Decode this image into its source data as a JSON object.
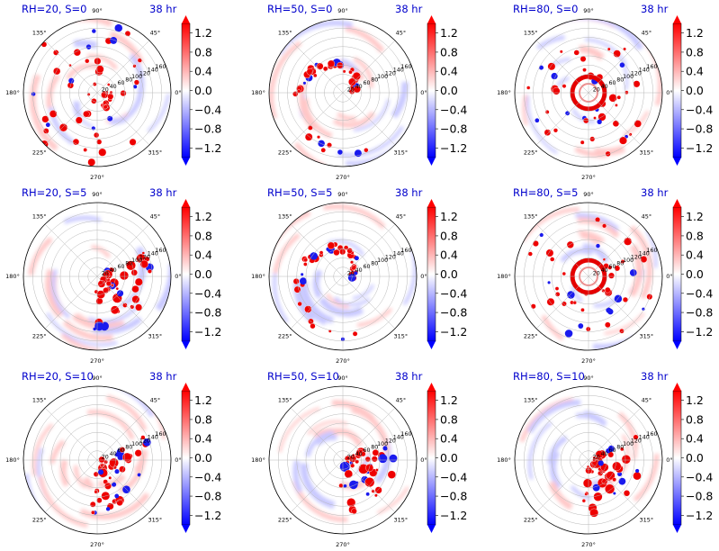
{
  "chart_data": [
    {
      "type": "heatmap",
      "projection": "polar",
      "title": "RH=20, S=0",
      "time_label": "38 hr",
      "angle_ticks": [
        "0°",
        "45°",
        "90°",
        "135°",
        "180°",
        "225°",
        "270°",
        "315°"
      ],
      "radial_ticks": [
        "20",
        "40",
        "60",
        "80",
        "100",
        "120",
        "140",
        "160"
      ],
      "colorbar": {
        "ticks": [
          "1.2",
          "0.8",
          "0.4",
          "0.0",
          "−0.4",
          "−0.8",
          "−1.2"
        ],
        "range": [
          -1.4,
          1.4
        ],
        "cmap": "bwr",
        "extend": "both"
      },
      "grid": true,
      "style": "scattered"
    },
    {
      "type": "heatmap",
      "projection": "polar",
      "title": "RH=50, S=0",
      "time_label": "38 hr",
      "angle_ticks": [
        "0°",
        "45°",
        "90°",
        "135°",
        "180°",
        "225°",
        "270°",
        "315°"
      ],
      "radial_ticks": [
        "20",
        "40",
        "60",
        "80",
        "100",
        "120",
        "140",
        "160"
      ],
      "colorbar": {
        "ticks": [
          "1.2",
          "0.8",
          "0.4",
          "0.0",
          "−0.4",
          "−0.8",
          "−1.2"
        ],
        "range": [
          -1.4,
          1.4
        ],
        "cmap": "bwr",
        "extend": "both"
      },
      "grid": true,
      "style": "spiral"
    },
    {
      "type": "heatmap",
      "projection": "polar",
      "title": "RH=80, S=0",
      "time_label": "38 hr",
      "angle_ticks": [
        "0°",
        "45°",
        "90°",
        "135°",
        "180°",
        "225°",
        "270°",
        "315°"
      ],
      "radial_ticks": [
        "20",
        "40",
        "60",
        "80",
        "100",
        "120",
        "140",
        "160"
      ],
      "colorbar": {
        "ticks": [
          "1.2",
          "0.8",
          "0.4",
          "0.0",
          "−0.4",
          "−0.8",
          "−1.2"
        ],
        "range": [
          -1.4,
          1.4
        ],
        "cmap": "bwr",
        "extend": "both"
      },
      "grid": true,
      "style": "ring"
    },
    {
      "type": "heatmap",
      "projection": "polar",
      "title": "RH=20, S=5",
      "time_label": "38 hr",
      "angle_ticks": [
        "0°",
        "45°",
        "90°",
        "135°",
        "180°",
        "225°",
        "270°",
        "315°"
      ],
      "radial_ticks": [
        "20",
        "40",
        "60",
        "80",
        "100",
        "120",
        "140",
        "160"
      ],
      "colorbar": {
        "ticks": [
          "1.2",
          "0.8",
          "0.4",
          "0.0",
          "−0.4",
          "−0.8",
          "−1.2"
        ],
        "range": [
          -1.4,
          1.4
        ],
        "cmap": "bwr",
        "extend": "both"
      },
      "grid": true,
      "style": "sheared"
    },
    {
      "type": "heatmap",
      "projection": "polar",
      "title": "RH=50, S=5",
      "time_label": "38 hr",
      "angle_ticks": [
        "0°",
        "45°",
        "90°",
        "135°",
        "180°",
        "225°",
        "270°",
        "315°"
      ],
      "radial_ticks": [
        "20",
        "40",
        "60",
        "80",
        "100",
        "120",
        "140",
        "160"
      ],
      "colorbar": {
        "ticks": [
          "1.2",
          "0.8",
          "0.4",
          "0.0",
          "−0.4",
          "−0.8",
          "−1.2"
        ],
        "range": [
          -1.4,
          1.4
        ],
        "cmap": "bwr",
        "extend": "both"
      },
      "grid": true,
      "style": "spiral"
    },
    {
      "type": "heatmap",
      "projection": "polar",
      "title": "RH=80, S=5",
      "time_label": "38 hr",
      "angle_ticks": [
        "0°",
        "45°",
        "90°",
        "135°",
        "180°",
        "225°",
        "270°",
        "315°"
      ],
      "radial_ticks": [
        "20",
        "40",
        "60",
        "80",
        "100",
        "120",
        "140",
        "160"
      ],
      "colorbar": {
        "ticks": [
          "1.2",
          "0.8",
          "0.4",
          "0.0",
          "−0.4",
          "−0.8",
          "−1.2"
        ],
        "range": [
          -1.4,
          1.4
        ],
        "cmap": "bwr",
        "extend": "both"
      },
      "grid": true,
      "style": "ring"
    },
    {
      "type": "heatmap",
      "projection": "polar",
      "title": "RH=20, S=10",
      "time_label": "38 hr",
      "angle_ticks": [
        "0°",
        "45°",
        "90°",
        "135°",
        "180°",
        "225°",
        "270°",
        "315°"
      ],
      "radial_ticks": [
        "20",
        "40",
        "60",
        "80",
        "100",
        "120",
        "140",
        "160"
      ],
      "colorbar": {
        "ticks": [
          "1.2",
          "0.8",
          "0.4",
          "0.0",
          "−0.4",
          "−0.8",
          "−1.2"
        ],
        "range": [
          -1.4,
          1.4
        ],
        "cmap": "bwr",
        "extend": "both"
      },
      "grid": true,
      "style": "sheared"
    },
    {
      "type": "heatmap",
      "projection": "polar",
      "title": "RH=50, S=10",
      "time_label": "38 hr",
      "angle_ticks": [
        "0°",
        "45°",
        "90°",
        "135°",
        "180°",
        "225°",
        "270°",
        "315°"
      ],
      "radial_ticks": [
        "20",
        "40",
        "60",
        "80",
        "100",
        "120",
        "140",
        "160"
      ],
      "colorbar": {
        "ticks": [
          "1.2",
          "0.8",
          "0.4",
          "0.0",
          "−0.4",
          "−0.8",
          "−1.2"
        ],
        "range": [
          -1.4,
          1.4
        ],
        "cmap": "bwr",
        "extend": "both"
      },
      "grid": true,
      "style": "sheared"
    },
    {
      "type": "heatmap",
      "projection": "polar",
      "title": "RH=80, S=10",
      "time_label": "38 hr",
      "angle_ticks": [
        "0°",
        "45°",
        "90°",
        "135°",
        "180°",
        "225°",
        "270°",
        "315°"
      ],
      "radial_ticks": [
        "20",
        "40",
        "60",
        "80",
        "100",
        "120",
        "140",
        "160"
      ],
      "colorbar": {
        "ticks": [
          "1.2",
          "0.8",
          "0.4",
          "0.0",
          "−0.4",
          "−0.8",
          "−1.2"
        ],
        "range": [
          -1.4,
          1.4
        ],
        "cmap": "bwr",
        "extend": "both"
      },
      "grid": true,
      "style": "sheared"
    }
  ],
  "colors": {
    "positive": "#ff0000",
    "negative": "#0000ff",
    "zero": "#ffffff",
    "title": "#0000cc",
    "grid": "#b8b8b8"
  }
}
